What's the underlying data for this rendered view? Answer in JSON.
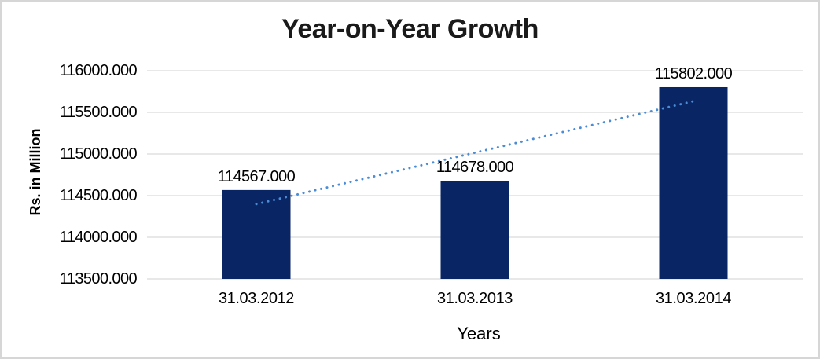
{
  "chart_data": {
    "type": "bar",
    "title": "Year-on-Year Growth",
    "xlabel": "Years",
    "ylabel": "Rs. in Million",
    "categories": [
      "31.03.2012",
      "31.03.2013",
      "31.03.2014"
    ],
    "values": [
      114567,
      114678,
      115802
    ],
    "data_labels": [
      "114567.000",
      "114678.000",
      "115802.000"
    ],
    "ylim": [
      113500,
      116000
    ],
    "yticks": [
      113500,
      114000,
      114500,
      115000,
      115500,
      116000
    ],
    "ytick_labels": [
      "113500.000",
      "114000.000",
      "114500.000",
      "115000.000",
      "115500.000",
      "116000.000"
    ],
    "grid": true,
    "legend": "none",
    "bar_color": "#0A2563",
    "gridline_color": "#D9D9D9",
    "axis_line_color": "#D9D9D9",
    "trendline": {
      "type": "linear",
      "style": "dotted",
      "color": "#4A8CD6"
    }
  }
}
